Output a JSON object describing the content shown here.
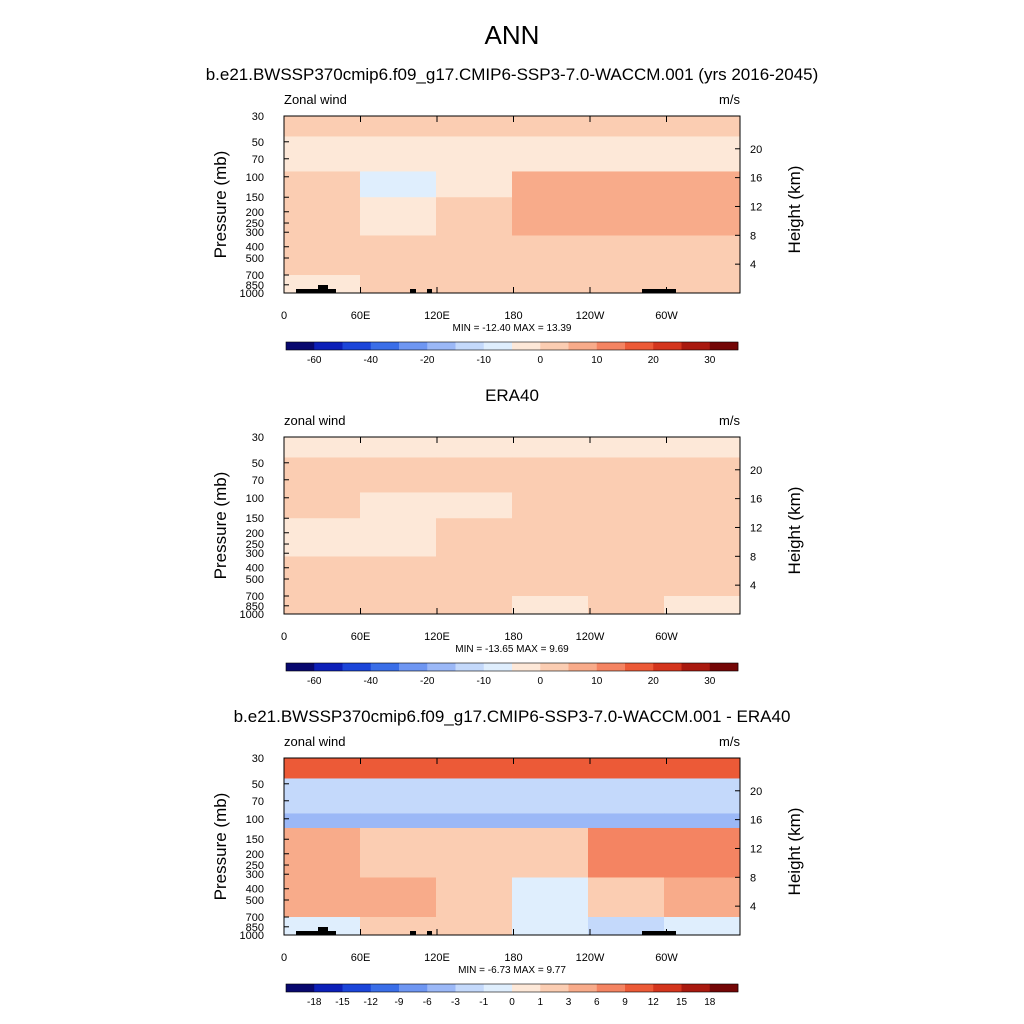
{
  "page": {
    "title": "ANN"
  },
  "chart_data": [
    {
      "type": "heatmap",
      "title": "b.e21.BWSSP370cmip6.f09_g17.CMIP6-SSP3-7.0-WACCM.001 (yrs 2016-2045)",
      "left_label": "Zonal wind",
      "units": "m/s",
      "ylabel": "Pressure (mb)",
      "ylabel_right": "Height (km)",
      "x_ticks": [
        "0",
        "60E",
        "120E",
        "180",
        "120W",
        "60W"
      ],
      "y_ticks": [
        "30",
        "50",
        "70",
        "100",
        "150",
        "200",
        "250",
        "300",
        "400",
        "500",
        "700",
        "850",
        "1000"
      ],
      "height_ticks": [
        "20",
        "16",
        "12",
        "8",
        "4"
      ],
      "stats": "MIN = -12.40  MAX =  13.39",
      "colorbar_labels": [
        "-60",
        "-40",
        "-20",
        "-10",
        "0",
        "10",
        "20",
        "30"
      ],
      "x": [
        "0",
        "60E",
        "120E",
        "180",
        "120W",
        "60W"
      ],
      "y": [
        "30",
        "50",
        "100",
        "200",
        "500",
        "850"
      ],
      "z": [
        [
          1,
          1,
          1,
          1,
          1,
          1
        ],
        [
          -3,
          -3,
          -3,
          -3,
          -3,
          -3
        ],
        [
          1,
          -6,
          -3,
          6,
          9,
          9
        ],
        [
          1,
          -3,
          1,
          6,
          6,
          6
        ],
        [
          1,
          1,
          1,
          1,
          1,
          1
        ],
        [
          -1,
          1,
          3,
          1,
          1,
          1
        ]
      ]
    },
    {
      "type": "heatmap",
      "title": "ERA40",
      "left_label": "zonal wind",
      "units": "m/s",
      "ylabel": "Pressure (mb)",
      "ylabel_right": "Height (km)",
      "x_ticks": [
        "0",
        "60E",
        "120E",
        "180",
        "120W",
        "60W"
      ],
      "y_ticks": [
        "30",
        "50",
        "70",
        "100",
        "150",
        "200",
        "250",
        "300",
        "400",
        "500",
        "700",
        "850",
        "1000"
      ],
      "height_ticks": [
        "20",
        "16",
        "12",
        "8",
        "4"
      ],
      "stats": "MIN = -13.65  MAX =   9.69",
      "colorbar_labels": [
        "-60",
        "-40",
        "-20",
        "-10",
        "0",
        "10",
        "20",
        "30"
      ],
      "x": [
        "0",
        "60E",
        "120E",
        "180",
        "120W",
        "60W"
      ],
      "y": [
        "30",
        "50",
        "100",
        "200",
        "500",
        "850"
      ],
      "z": [
        [
          -1,
          -1,
          -1,
          -1,
          -1,
          -1
        ],
        [
          1,
          1,
          1,
          1,
          1,
          1
        ],
        [
          1,
          -3,
          -3,
          3,
          3,
          1
        ],
        [
          -1,
          -3,
          1,
          3,
          3,
          1
        ],
        [
          1,
          1,
          1,
          1,
          1,
          1
        ],
        [
          1,
          1,
          1,
          -1,
          1,
          -1
        ]
      ]
    },
    {
      "type": "heatmap",
      "title": "b.e21.BWSSP370cmip6.f09_g17.CMIP6-SSP3-7.0-WACCM.001 - ERA40",
      "left_label": "zonal wind",
      "units": "m/s",
      "ylabel": "Pressure (mb)",
      "ylabel_right": "Height (km)",
      "x_ticks": [
        "0",
        "60E",
        "120E",
        "180",
        "120W",
        "60W"
      ],
      "y_ticks": [
        "30",
        "50",
        "70",
        "100",
        "150",
        "200",
        "250",
        "300",
        "400",
        "500",
        "700",
        "850",
        "1000"
      ],
      "height_ticks": [
        "20",
        "16",
        "12",
        "8",
        "4"
      ],
      "stats": "MIN =  -6.73  MAX =   9.77",
      "colorbar_labels": [
        "-18",
        "-15",
        "-12",
        "-9",
        "-6",
        "-3",
        "-1",
        "0",
        "1",
        "3",
        "6",
        "9",
        "12",
        "15",
        "18"
      ],
      "x": [
        "0",
        "60E",
        "120E",
        "180",
        "120W",
        "60W"
      ],
      "y": [
        "30",
        "50",
        "70",
        "150",
        "500",
        "850"
      ],
      "z": [
        [
          9,
          9,
          9,
          9,
          9,
          9
        ],
        [
          -3,
          -3,
          -3,
          -3,
          -3,
          -3
        ],
        [
          -6,
          -6,
          -6,
          -6,
          -6,
          -6
        ],
        [
          3,
          1,
          1,
          1,
          6,
          6
        ],
        [
          3,
          3,
          1,
          -1,
          1,
          3
        ],
        [
          -1,
          1,
          1,
          -1,
          -3,
          -1
        ]
      ]
    }
  ]
}
